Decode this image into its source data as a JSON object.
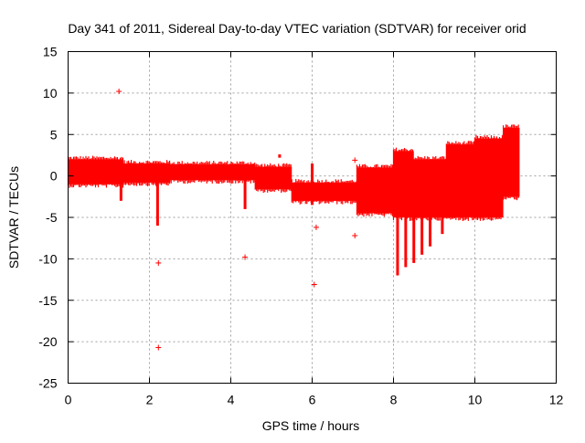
{
  "chart_data": {
    "type": "scatter",
    "title": "Day 341 of 2011, Sidereal Day-to-day VTEC variation (SDTVAR) for receiver orid",
    "xlabel": "GPS time / hours",
    "ylabel": "SDTVAR / TECUs",
    "xlim": [
      0,
      12
    ],
    "ylim": [
      -25,
      15
    ],
    "xticks": [
      0,
      2,
      4,
      6,
      8,
      10,
      12
    ],
    "yticks": [
      -25,
      -20,
      -15,
      -10,
      -5,
      0,
      5,
      10,
      15
    ],
    "grid": true,
    "marker": "+",
    "series": [
      {
        "name": "SDTVAR",
        "color": "#ff0000",
        "bands": [
          {
            "x": [
              0.0,
              1.35
            ],
            "y": [
              -1.0,
              2.0
            ]
          },
          {
            "x": [
              1.35,
              2.5
            ],
            "y": [
              -0.8,
              1.5
            ]
          },
          {
            "x": [
              2.5,
              4.6
            ],
            "y": [
              -0.5,
              1.4
            ]
          },
          {
            "x": [
              4.6,
              5.5
            ],
            "y": [
              -1.6,
              1.1
            ]
          },
          {
            "x": [
              5.5,
              7.1
            ],
            "y": [
              -3.0,
              -0.8
            ]
          },
          {
            "x": [
              7.1,
              8.0
            ],
            "y": [
              -4.5,
              1.0
            ]
          },
          {
            "x": [
              8.0,
              8.5
            ],
            "y": [
              -5.0,
              3.0
            ]
          },
          {
            "x": [
              8.5,
              9.3
            ],
            "y": [
              -5.0,
              2.0
            ]
          },
          {
            "x": [
              9.3,
              10.0
            ],
            "y": [
              -5.0,
              3.8
            ]
          },
          {
            "x": [
              10.0,
              10.7
            ],
            "y": [
              -5.0,
              4.5
            ]
          },
          {
            "x": [
              10.7,
              11.1
            ],
            "y": [
              -2.5,
              5.8
            ]
          }
        ],
        "spikes": [
          {
            "x": 1.3,
            "y": [
              -3.0,
              0
            ]
          },
          {
            "x": 2.2,
            "y": [
              -6.0,
              0
            ]
          },
          {
            "x": 4.35,
            "y": [
              -4.0,
              0
            ]
          },
          {
            "x": 5.2,
            "y": [
              2.2,
              2.6
            ]
          },
          {
            "x": 6.0,
            "y": [
              -3.5,
              1.5
            ]
          },
          {
            "x": 8.1,
            "y": [
              -12.0,
              -5.0
            ]
          },
          {
            "x": 8.3,
            "y": [
              -11.0,
              -5.0
            ]
          },
          {
            "x": 8.5,
            "y": [
              -10.5,
              -5.0
            ]
          },
          {
            "x": 8.7,
            "y": [
              -9.5,
              -5.0
            ]
          },
          {
            "x": 8.9,
            "y": [
              -8.5,
              -5.0
            ]
          },
          {
            "x": 9.2,
            "y": [
              -7.0,
              -5.0
            ]
          }
        ],
        "outliers": [
          {
            "x": 1.25,
            "y": 10.2
          },
          {
            "x": 2.22,
            "y": -10.5
          },
          {
            "x": 2.22,
            "y": -20.7
          },
          {
            "x": 4.35,
            "y": -9.8
          },
          {
            "x": 6.05,
            "y": -13.1
          },
          {
            "x": 6.1,
            "y": -6.2
          },
          {
            "x": 7.05,
            "y": 1.9
          },
          {
            "x": 7.05,
            "y": -7.2
          }
        ]
      }
    ]
  }
}
